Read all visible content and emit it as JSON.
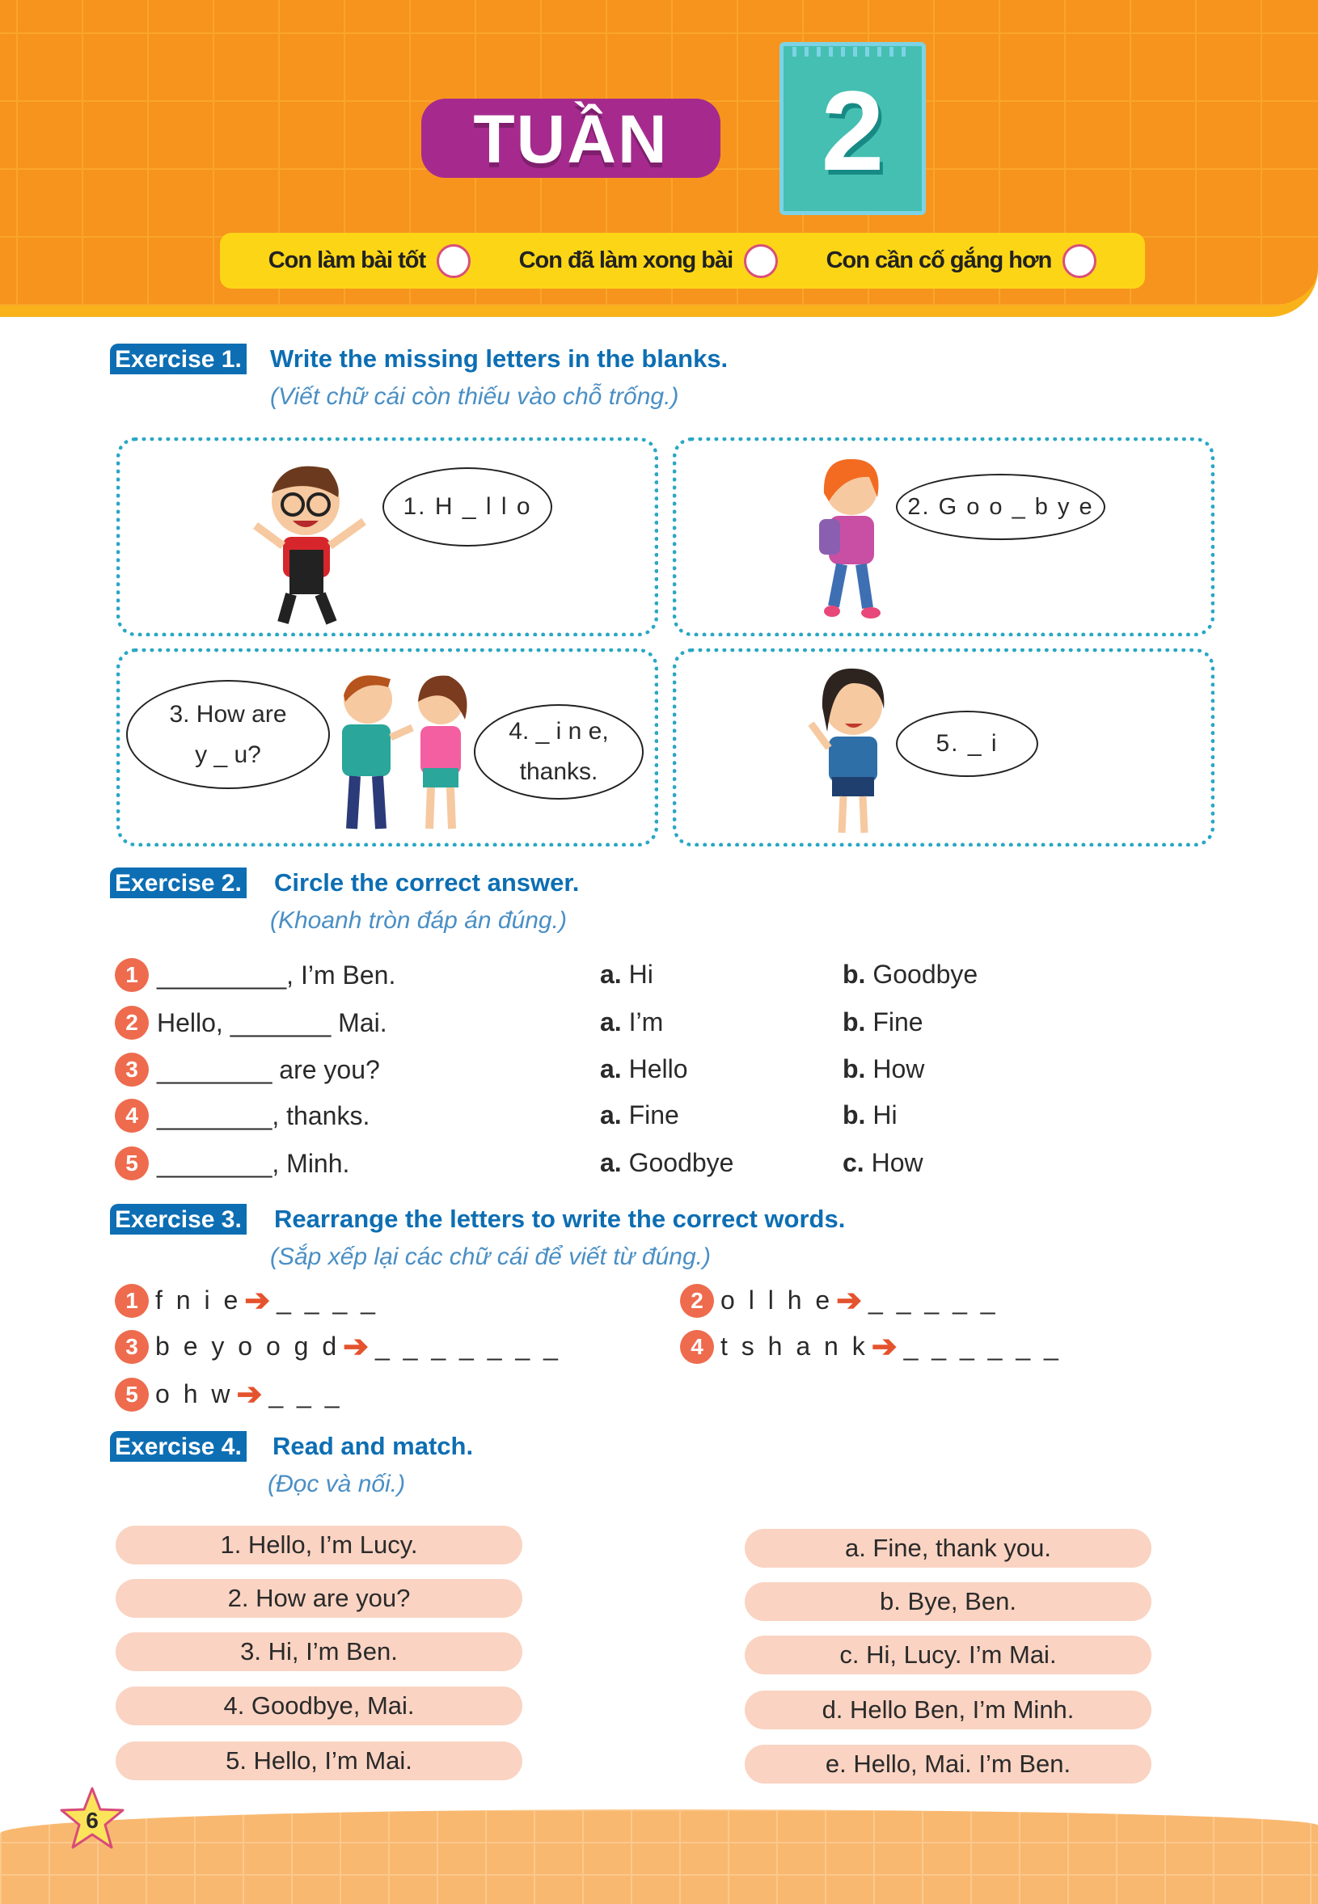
{
  "header": {
    "week_label": "TUẦN",
    "week_number": "2",
    "ratings": [
      "Con làm bài tốt",
      "Con đã làm xong bài",
      "Con cần cố gắng hơn"
    ]
  },
  "ex1": {
    "label": "Exercise 1.",
    "title": "Write the missing letters in the blanks.",
    "subtitle": "(Viết chữ cái còn thiếu vào chỗ trống.)",
    "bubbles": [
      [
        "1. H _ l l o"
      ],
      [
        "2. G o o _ b y e"
      ],
      [
        "3. How are",
        "y _ u?"
      ],
      [
        "4. _ i n e,",
        "thanks."
      ],
      [
        "5. _ i"
      ]
    ]
  },
  "ex2": {
    "label": "Exercise 2.",
    "title": "Circle the correct answer.",
    "subtitle": "(Khoanh tròn đáp án đúng.)",
    "items": [
      {
        "n": "1",
        "q": "_________, I’m Ben.",
        "a_key": "a.",
        "a": "Hi",
        "b_key": "b.",
        "b": "Goodbye"
      },
      {
        "n": "2",
        "q": "Hello, _______ Mai.",
        "a_key": "a.",
        "a": "I’m",
        "b_key": "b.",
        "b": "Fine"
      },
      {
        "n": "3",
        "q": "________ are you?",
        "a_key": "a.",
        "a": "Hello",
        "b_key": "b.",
        "b": "How"
      },
      {
        "n": "4",
        "q": "________, thanks.",
        "a_key": "a.",
        "a": "Fine",
        "b_key": "b.",
        "b": "Hi"
      },
      {
        "n": "5",
        "q": "________, Minh.",
        "a_key": "a.",
        "a": "Goodbye",
        "b_key": "c.",
        "b": "How"
      }
    ]
  },
  "ex3": {
    "label": "Exercise 3.",
    "title": "Rearrange the letters to write the correct words.",
    "subtitle": "(Sắp xếp lại các chữ cái để viết từ đúng.)",
    "items": [
      {
        "n": "1",
        "letters": "f n i e",
        "blanks": "_ _ _ _"
      },
      {
        "n": "2",
        "letters": "o l l h e",
        "blanks": "_ _ _ _ _"
      },
      {
        "n": "3",
        "letters": "b e y o o g d",
        "blanks": "_ _ _ _ _ _ _"
      },
      {
        "n": "4",
        "letters": "t s h a n k",
        "blanks": "_ _ _ _ _ _"
      },
      {
        "n": "5",
        "letters": "o h w",
        "blanks": "_ _ _"
      }
    ]
  },
  "ex4": {
    "label": "Exercise 4.",
    "title": "Read and match.",
    "subtitle": "(Đọc và nối.)",
    "left": [
      "1. Hello, I’m Lucy.",
      "2. How are you?",
      "3. Hi, I’m Ben.",
      "4. Goodbye, Mai.",
      "5. Hello, I’m Mai."
    ],
    "right": [
      "a. Fine, thank you.",
      "b. Bye, Ben.",
      "c. Hi, Lucy. I’m Mai.",
      "d. Hello Ben, I’m Minh.",
      "e. Hello, Mai. I’m Ben."
    ]
  },
  "page_number": "6",
  "colors": {
    "header": "#f7941d",
    "exercise": "#0d6eb3",
    "number_dot": "#ee6b4e",
    "pill": "#fad3c2"
  }
}
